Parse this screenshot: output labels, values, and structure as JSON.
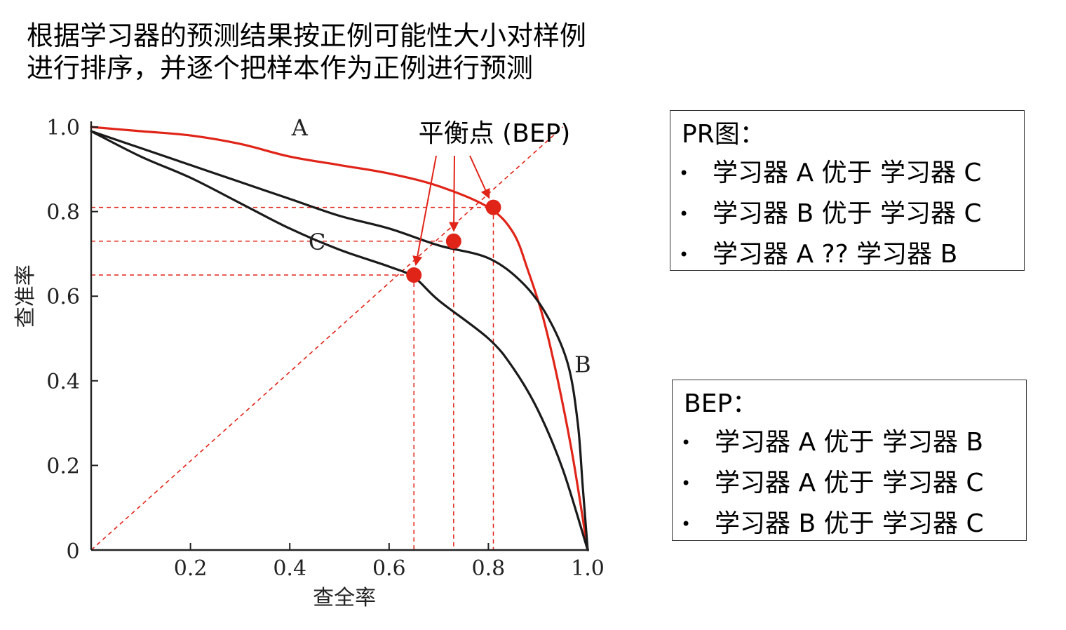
{
  "heading": {
    "line1": "根据学习器的预测结果按正例可能性大小对样例",
    "line2": "进行排序，并逐个把样本作为正例进行预测"
  },
  "pr_box": {
    "title": "PR图：",
    "items": [
      "学习器 A 优于 学习器 C",
      "学习器 B 优于 学习器 C",
      "学习器 A  ?? 学习器 B"
    ]
  },
  "bep_box": {
    "title": "BEP：",
    "items": [
      "学习器 A 优于 学习器 B",
      "学习器 A 优于 学习器 C",
      "学习器 B 优于 学习器 C"
    ]
  },
  "bullet_glyph": "•",
  "chart_data": {
    "type": "line",
    "xlabel": "查全率",
    "ylabel": "查准率",
    "xlim": [
      0,
      1
    ],
    "ylim": [
      0,
      1
    ],
    "x_ticks": [
      {
        "value": 0,
        "label": "0"
      },
      {
        "value": 0.2,
        "label": "0.2"
      },
      {
        "value": 0.4,
        "label": "0.4"
      },
      {
        "value": 0.6,
        "label": "0.6"
      },
      {
        "value": 0.8,
        "label": "0.8"
      },
      {
        "value": 1.0,
        "label": "1.0"
      }
    ],
    "y_ticks": [
      {
        "value": 0.2,
        "label": "0.2"
      },
      {
        "value": 0.4,
        "label": "0.4"
      },
      {
        "value": 0.6,
        "label": "0.6"
      },
      {
        "value": 0.8,
        "label": "0.8"
      },
      {
        "value": 1.0,
        "label": "1.0"
      }
    ],
    "grid": false,
    "annotation": "平衡点 (BEP)",
    "series": [
      {
        "name": "A",
        "color": "#e02418",
        "points": [
          [
            0,
            1.0
          ],
          [
            0.1,
            0.99
          ],
          [
            0.2,
            0.98
          ],
          [
            0.3,
            0.96
          ],
          [
            0.4,
            0.93
          ],
          [
            0.5,
            0.91
          ],
          [
            0.6,
            0.89
          ],
          [
            0.7,
            0.86
          ],
          [
            0.8,
            0.81
          ],
          [
            0.85,
            0.75
          ],
          [
            0.88,
            0.66
          ],
          [
            0.91,
            0.55
          ],
          [
            0.94,
            0.4
          ],
          [
            0.97,
            0.22
          ],
          [
            1.0,
            0.0
          ]
        ],
        "label_at": [
          0.42,
          1.0
        ]
      },
      {
        "name": "B",
        "color": "#1a1a1a",
        "points": [
          [
            0,
            0.99
          ],
          [
            0.1,
            0.95
          ],
          [
            0.2,
            0.91
          ],
          [
            0.3,
            0.87
          ],
          [
            0.4,
            0.83
          ],
          [
            0.5,
            0.79
          ],
          [
            0.6,
            0.76
          ],
          [
            0.7,
            0.72
          ],
          [
            0.8,
            0.69
          ],
          [
            0.87,
            0.63
          ],
          [
            0.92,
            0.55
          ],
          [
            0.96,
            0.44
          ],
          [
            0.98,
            0.3
          ],
          [
            0.99,
            0.15
          ],
          [
            1.0,
            0.0
          ]
        ],
        "label_at": [
          0.99,
          0.44
        ]
      },
      {
        "name": "C",
        "color": "#1a1a1a",
        "points": [
          [
            0,
            0.99
          ],
          [
            0.1,
            0.93
          ],
          [
            0.2,
            0.88
          ],
          [
            0.3,
            0.82
          ],
          [
            0.4,
            0.76
          ],
          [
            0.5,
            0.71
          ],
          [
            0.6,
            0.67
          ],
          [
            0.65,
            0.645
          ],
          [
            0.7,
            0.59
          ],
          [
            0.8,
            0.5
          ],
          [
            0.85,
            0.43
          ],
          [
            0.9,
            0.33
          ],
          [
            0.95,
            0.19
          ],
          [
            1.0,
            0.0
          ]
        ],
        "label_at": [
          0.455,
          0.73
        ]
      }
    ],
    "bep_points": [
      {
        "series": "C",
        "value": 0.65
      },
      {
        "series": "B",
        "value": 0.73
      },
      {
        "series": "A",
        "value": 0.81
      }
    ],
    "reference_line": {
      "from": [
        0,
        0
      ],
      "to": [
        0.95,
        1.0
      ],
      "style": "dashed",
      "color": "#e02418"
    }
  }
}
